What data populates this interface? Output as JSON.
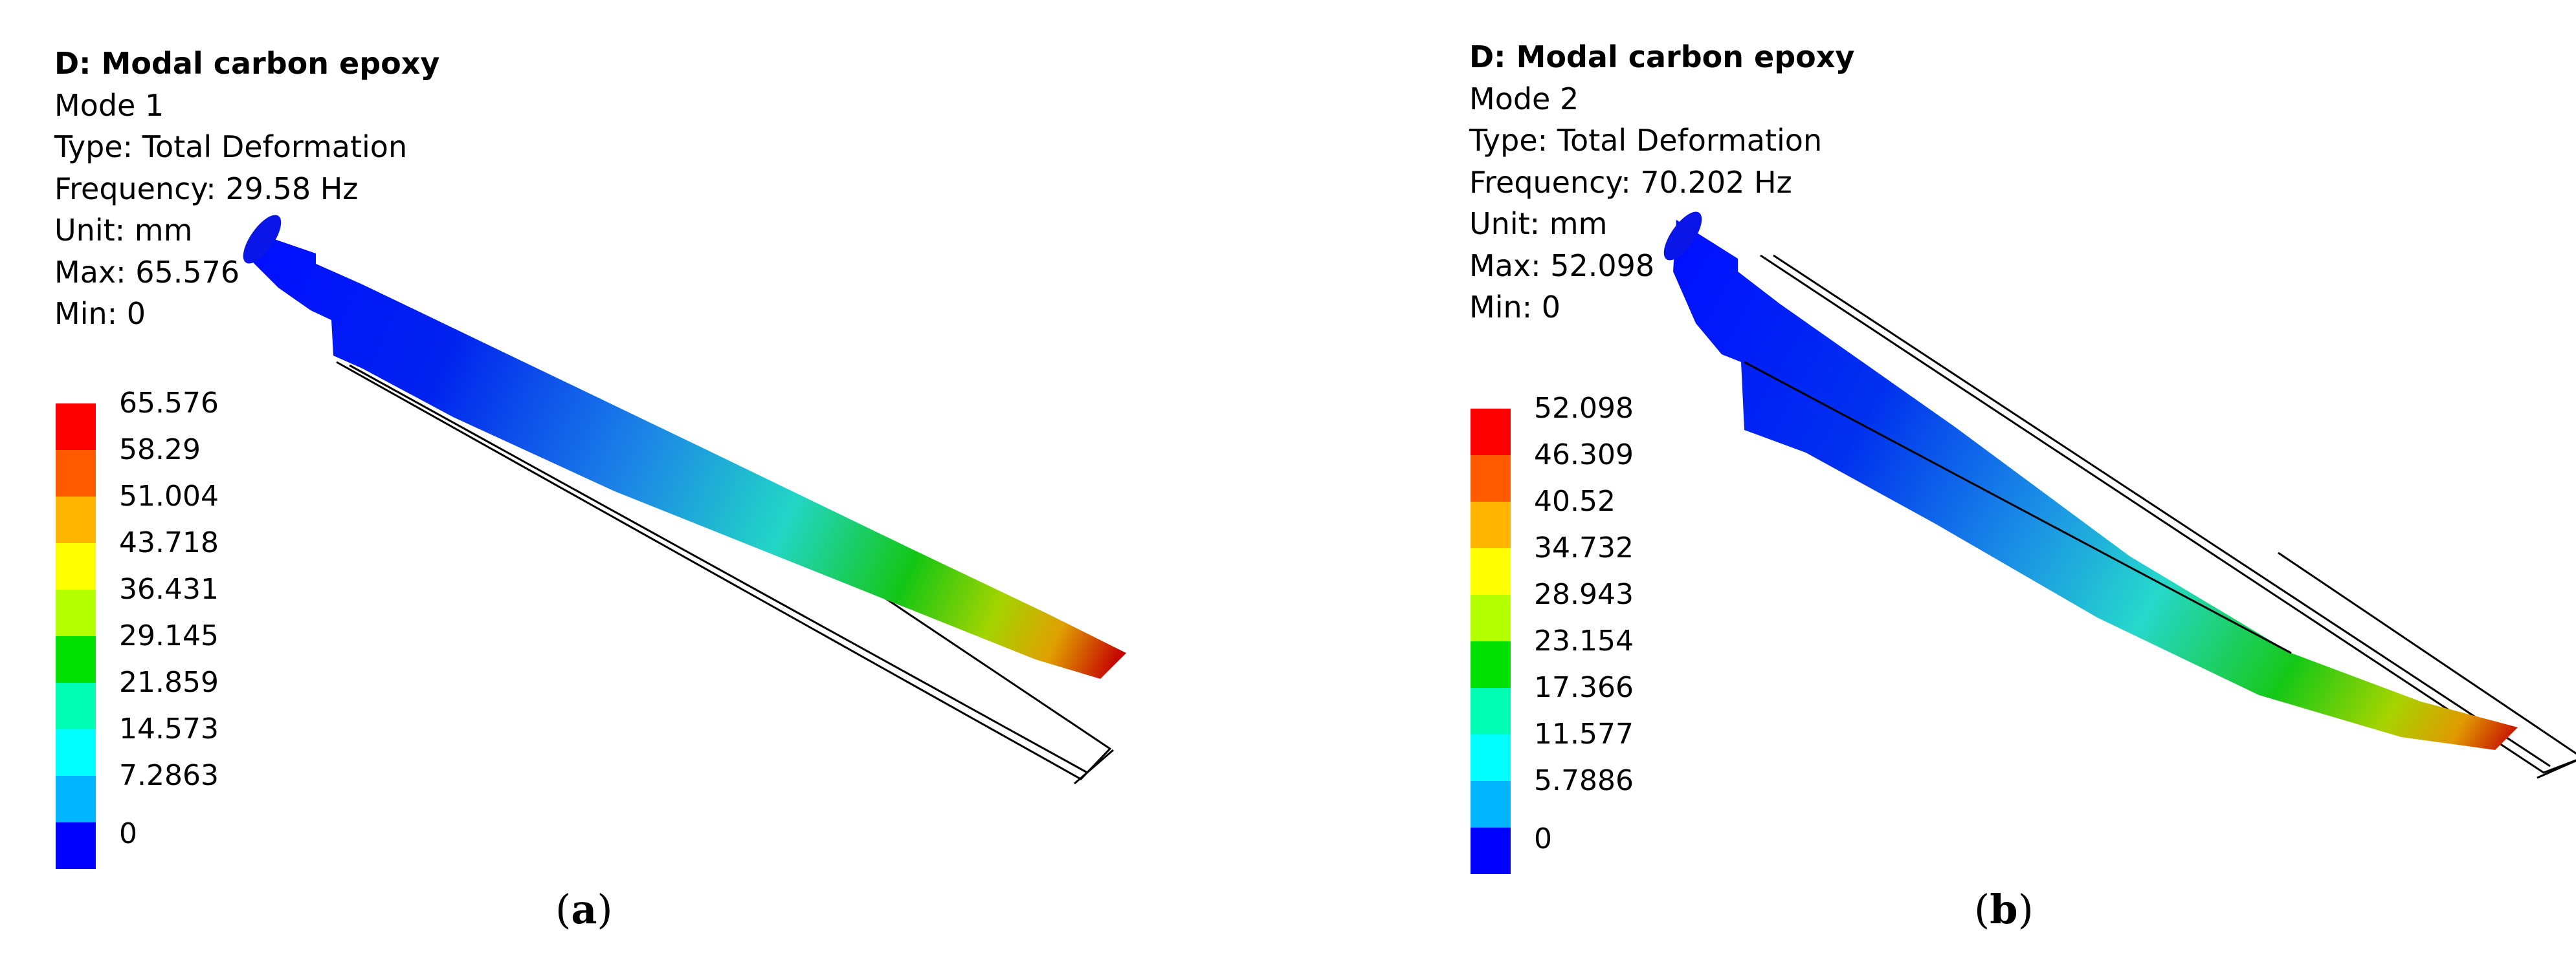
{
  "panels": [
    {
      "info": {
        "title": "D: Modal carbon epoxy",
        "mode": "Mode 1",
        "type": "Type: Total Deformation",
        "frequency": "Frequency: 29.58 Hz",
        "unit": "Unit: mm",
        "max": "Max: 65.576",
        "min": "Min: 0"
      },
      "legend": [
        "65.576",
        "58.29",
        "51.004",
        "43.718",
        "36.431",
        "29.145",
        "21.859",
        "14.573",
        "7.2863",
        "0"
      ],
      "caption_letter": "a"
    },
    {
      "info": {
        "title": "D: Modal carbon epoxy",
        "mode": "Mode 2",
        "type": "Type: Total Deformation",
        "frequency": "Frequency: 70.202 Hz",
        "unit": "Unit: mm",
        "max": "Max: 52.098",
        "min": "Min: 0"
      },
      "legend": [
        "52.098",
        "46.309",
        "40.52",
        "34.732",
        "28.943",
        "23.154",
        "17.366",
        "11.577",
        "5.7886",
        "0"
      ],
      "caption_letter": "b"
    }
  ],
  "legend_colors": [
    "#ff0000",
    "#ff5a00",
    "#ffb400",
    "#ffff00",
    "#b4ff00",
    "#00e000",
    "#00ffb4",
    "#00ffff",
    "#00b4ff",
    "#0000ff"
  ]
}
